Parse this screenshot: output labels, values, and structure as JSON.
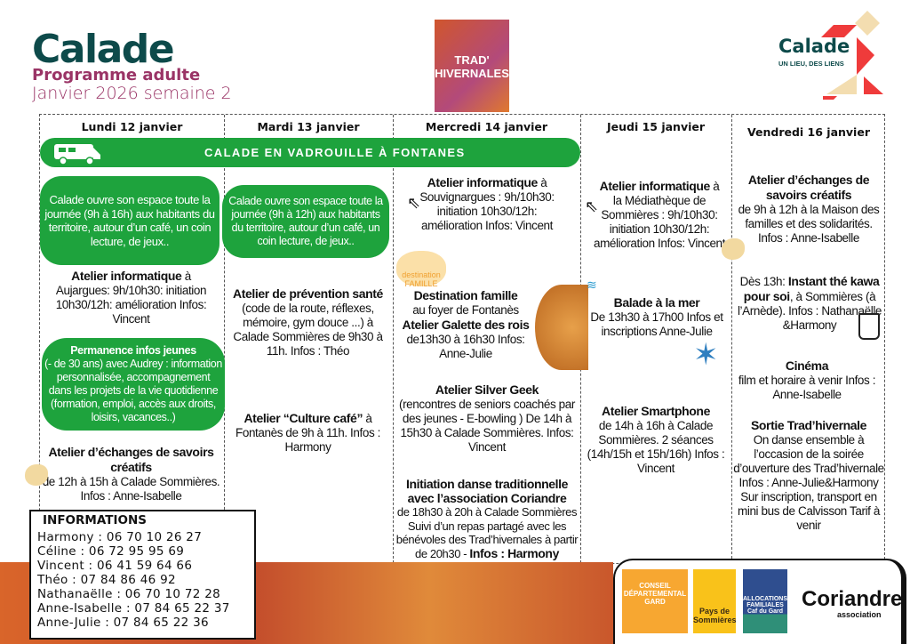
{
  "header": {
    "brand": "Calade",
    "subtitle": "Programme adulte",
    "week": "Janvier 2026 semaine 2",
    "trad_logo": "TRAD' HIVERNALES",
    "logo_name": "Calade",
    "logo_tagline": "UN LIEU, DES LIENS"
  },
  "days": [
    "Lundi 12 janvier",
    "Mardi 13 janvier",
    "Mercredi 14 janvier",
    "Jeudi 15 janvier",
    "Vendredi 16 janvier"
  ],
  "banner": "CALADE EN VADROUILLE À FONTANES",
  "monday": {
    "bubble1": "Calade ouvre son espace toute la journée (9h à 16h) aux habitants du territoire, autour d’un café, un coin lecture, de jeux..",
    "info_title": "Atelier informatique",
    "info_after": " à",
    "info_body": "Aujargues: 9h/10h30: initiation 10h30/12h: amélioration Infos: Vincent",
    "bubble2_title": "Permanence infos jeunes",
    "bubble2_body": "(- de 30 ans) avec Audrey : information personnalisée, accompagnement dans les projets de la vie quotidienne (formation, emploi, accès aux droits, loisirs, vacances..)",
    "ech_title": "Atelier d’échanges de savoirs créatifs",
    "ech_body": "de 12h à 15h à Calade Sommières. Infos : Anne-Isabelle"
  },
  "tuesday": {
    "bubble": "Calade ouvre son espace toute la journée (9h à 12h) aux habitants du territoire, autour d’un café, un coin lecture, de jeux..",
    "prev_title": "Atelier de prévention santé",
    "prev_body": "(code de la route, réflexes, mémoire, gym douce ...) à Calade Sommières de 9h30 à 11h. Infos : Théo",
    "cafe_title": "Atelier “Culture café”",
    "cafe_after": " à",
    "cafe_body": "Fontanès de 9h à 11h. Infos : Harmony"
  },
  "wednesday": {
    "info_title": "Atelier informatique",
    "info_after": " à",
    "info_body": "Souvignargues : 9h/10h30: initiation 10h30/12h: amélioration Infos: Vincent",
    "dest_logo": "destination FAMILLE",
    "dest_title": "Destination famille",
    "dest_body": "au foyer de Fontanès",
    "galette_title": "Atelier Galette des rois",
    "galette_body": "de13h30 à 16h30 Infos: Anne-Julie",
    "geek_title": "Atelier Silver Geek",
    "geek_body": "(rencontres de seniors coachés par des jeunes - E-bowling ) De 14h à 15h30 à Calade Sommières. Infos: Vincent",
    "danse_title": "Initiation danse traditionnelle avec l’association Coriandre",
    "danse_body": "de 18h30 à 20h à Calade Sommières Suivi d’un repas partagé avec les bénévoles des Trad’hivernales à partir de 20h30 - ",
    "danse_info": "Infos : Harmony"
  },
  "thursday": {
    "info_title": "Atelier informatique",
    "info_after": " à",
    "info_body": "la Médiathèque de Sommières : 9h/10h30: initiation 10h30/12h: amélioration Infos: Vincent",
    "mer_title": "Balade à la mer",
    "mer_body": "De 13h30 à 17h00 Infos et inscriptions Anne-Julie",
    "smart_title": "Atelier Smartphone",
    "smart_body": "de 14h à 16h à Calade Sommières. 2 séances (14h/15h et 15h/16h) Infos : Vincent"
  },
  "friday": {
    "ech_title": "Atelier d’échanges de savoirs créatifs",
    "ech_body": "de 9h à 12h à la Maison des familles et des solidarités. Infos : Anne-Isabelle",
    "the_pre": "Dès 13h: ",
    "the_title": "Instant thé kawa pour soi",
    "the_body": ", à Sommières (à l’Arnède). Infos : Nathanaëlle &Harmony",
    "cine_title": "Cinéma",
    "cine_body": "film et horaire à venir Infos : Anne-Isabelle",
    "sortie_title": "Sortie Trad’hivernale",
    "sortie_body": "On danse ensemble à l’occasion de la soirée d’ouverture des Trad’hivernale Infos : Anne-Julie&Harmony Sur inscription, transport en mini bus de Calvisson Tarif à venir"
  },
  "informations": {
    "title": "INFORMATIONS",
    "contacts": [
      "Harmony : 06 70 10 26 27",
      "Céline : 06 72 95 95 69",
      "Vincent : 06 41 59 64 66",
      "Théo : 07 84 86 46 92",
      "Nathanaëlle : 06 70 10 72 28",
      "Anne-Isabelle : 07 84 65 22 37",
      "Anne-Julie : 07 84 65 22 36"
    ]
  },
  "partners": {
    "gard": "CONSEIL DÉPARTEMENTAL GARD",
    "pays": "Pays de Sommières",
    "caf": "ALLOCATIONS FAMILIALES Caf du Gard",
    "coriandre": "Coriandre",
    "coriandre_sub": "association"
  },
  "colors": {
    "green": "#1ea33d",
    "teal": "#0d4a4a",
    "plum": "#9a3466",
    "red": "#ef3b3b"
  }
}
